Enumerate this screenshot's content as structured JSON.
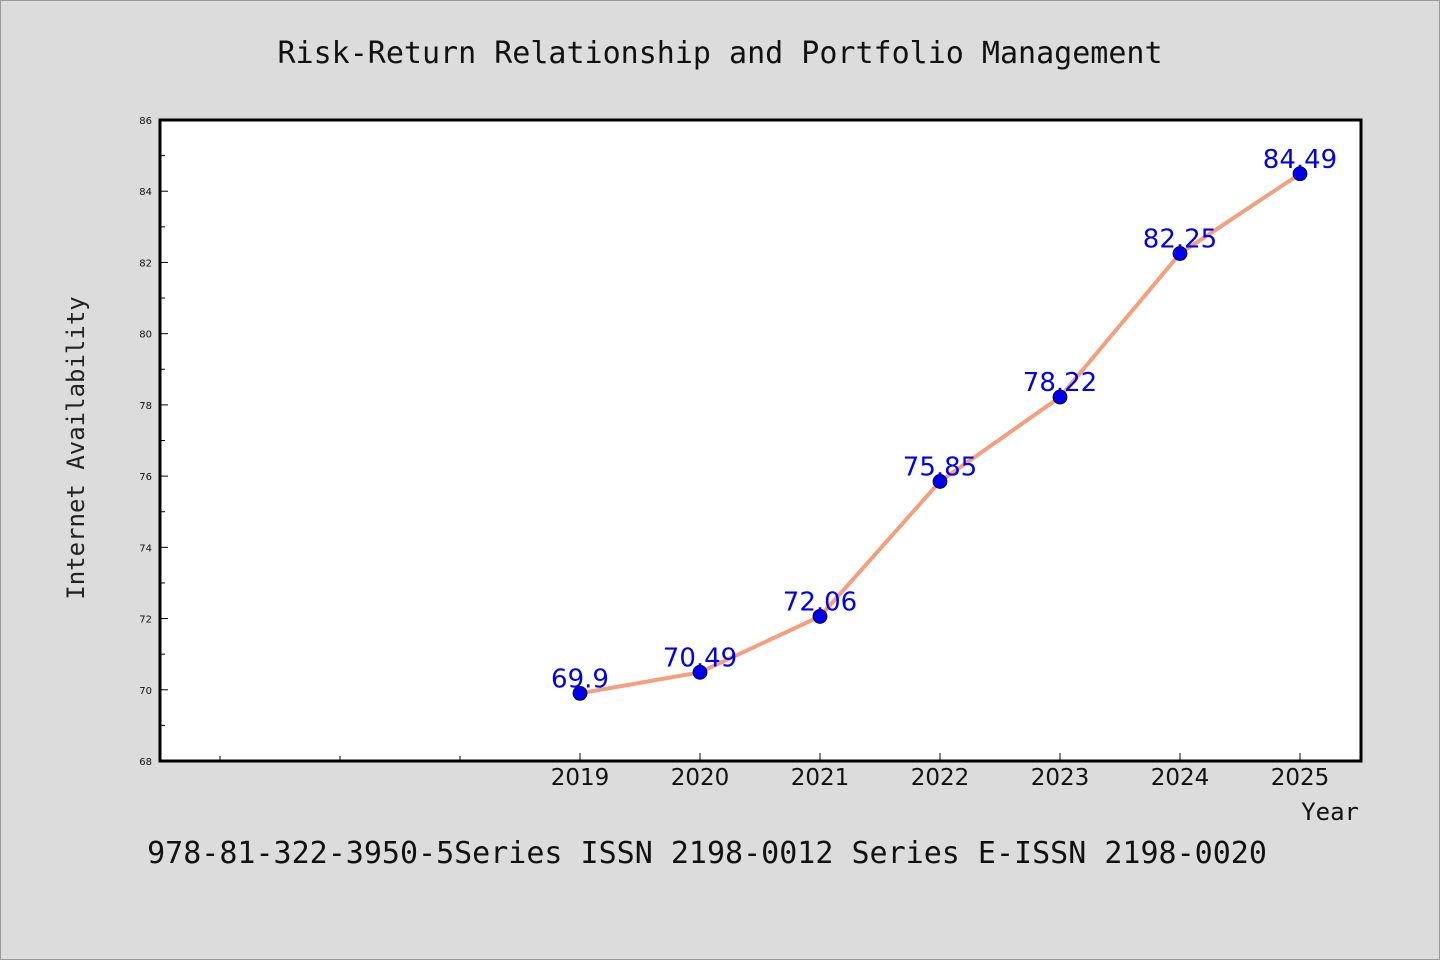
{
  "chart_data": {
    "type": "line",
    "title": "Risk-Return Relationship and Portfolio Management",
    "xlabel": "Year",
    "ylabel": "Internet Availability",
    "x": [
      "2019",
      "2020",
      "2021",
      "2022",
      "2023",
      "2024",
      "2025"
    ],
    "series": [
      {
        "values": [
          69.9,
          70.49,
          72.06,
          75.85,
          78.22,
          82.25,
          84.49
        ],
        "data_labels": [
          "69.9",
          "70.49",
          "72.06",
          "75.85",
          "78.22",
          "82.25",
          "84.49"
        ],
        "line_color": "#f4a07e",
        "marker_color": "#0000ee",
        "label_color": "#0000ee"
      }
    ],
    "ylim": [
      68,
      86
    ],
    "y_ticks": [
      "68",
      "70",
      "72",
      "74",
      "76",
      "78",
      "80",
      "82",
      "84",
      "86"
    ],
    "grid": false,
    "legend": "none"
  },
  "footer": {
    "text": "978-81-322-3950-5Series ISSN 2198-0012 Series E-ISSN 2198-0020"
  },
  "colors": {
    "background": "#dcdcdc",
    "plot_background": "#ffffff",
    "axis": "#000000"
  }
}
